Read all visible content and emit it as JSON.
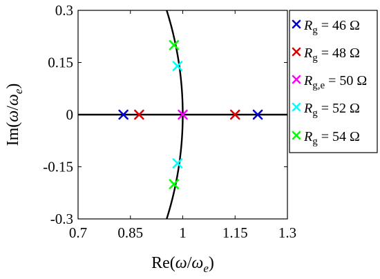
{
  "chart_data": {
    "type": "scatter",
    "title": "",
    "xlabel": {
      "prefix": "Re(",
      "omega": "ω",
      "slash": "/",
      "omega2": "ω",
      "sub": "e",
      "suffix": ")"
    },
    "ylabel": {
      "prefix": "Im(",
      "omega": "ω",
      "slash": "/",
      "omega2": "ω",
      "sub": "e",
      "suffix": ")"
    },
    "xlim": [
      0.7,
      1.3
    ],
    "ylim": [
      -0.3,
      0.3
    ],
    "xticks": [
      {
        "value": 0.7,
        "label": "0.7"
      },
      {
        "value": 0.85,
        "label": "0.85"
      },
      {
        "value": 1.0,
        "label": "1"
      },
      {
        "value": 1.15,
        "label": "1.15"
      },
      {
        "value": 1.3,
        "label": "1.3"
      }
    ],
    "yticks": [
      {
        "value": 0.3,
        "label": "0.3"
      },
      {
        "value": 0.15,
        "label": "0.15"
      },
      {
        "value": 0.0,
        "label": "0"
      },
      {
        "value": -0.15,
        "label": "-0.15"
      },
      {
        "value": -0.3,
        "label": "-0.3"
      }
    ],
    "grid": false,
    "legend_position": "outside-right",
    "marker": "x",
    "series": [
      {
        "symbol": "R",
        "sub": "g",
        "eq": " = 46 Ω",
        "color": "#0000cc",
        "x": [
          0.83,
          1.215
        ],
        "y": [
          0,
          0
        ]
      },
      {
        "symbol": "R",
        "sub": "g",
        "eq": " = 48 Ω",
        "color": "#dd0000",
        "x": [
          0.875,
          1.15
        ],
        "y": [
          0,
          0
        ]
      },
      {
        "symbol": "R",
        "sub": "g,e",
        "eq": " = 50 Ω",
        "color": "#ff00ff",
        "x": [
          1.0
        ],
        "y": [
          0
        ]
      },
      {
        "symbol": "R",
        "sub": "g",
        "eq": " = 52 Ω",
        "color": "#00ffff",
        "x": [
          0.985,
          0.985
        ],
        "y": [
          0.14,
          -0.14
        ]
      },
      {
        "symbol": "R",
        "sub": "g",
        "eq": " = 54 Ω",
        "color": "#00ff00",
        "x": [
          0.975,
          0.975
        ],
        "y": [
          0.2,
          -0.2
        ]
      }
    ],
    "reference_lines": [
      {
        "kind": "horizontal",
        "y": 0,
        "color": "#000000"
      },
      {
        "kind": "unit-circle-arc",
        "radius": 1,
        "color": "#000000"
      }
    ]
  }
}
